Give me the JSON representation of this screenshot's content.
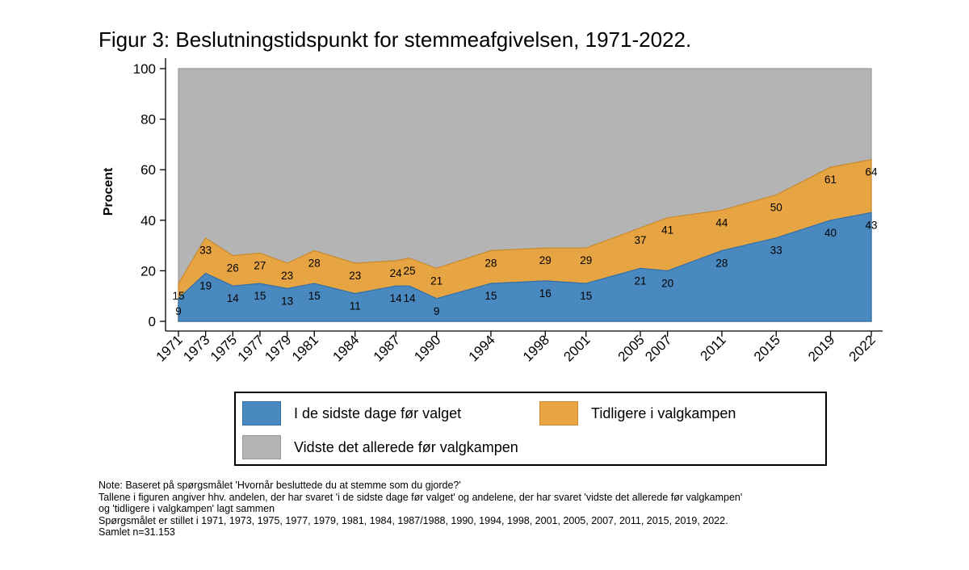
{
  "title": "Figur 3: Beslutningstidspunkt for stemmeafgivelsen, 1971-2022.",
  "chart_data": {
    "type": "area",
    "stacked": false,
    "x": [
      "1971",
      "1973",
      "1975",
      "1977",
      "1979",
      "1981",
      "1984",
      "1987",
      "1988",
      "1990",
      "1994",
      "1998",
      "2001",
      "2005",
      "2007",
      "2011",
      "2015",
      "2019",
      "2022"
    ],
    "x_tick_labels": [
      "1971",
      "1973",
      "1975",
      "1977",
      "1979",
      "1981",
      "1984",
      "1987",
      "1990",
      "1994",
      "1998",
      "2001",
      "2005",
      "2007",
      "2011",
      "2015",
      "2019",
      "2022"
    ],
    "y_ticks": [
      "0",
      "20",
      "40",
      "60",
      "80",
      "100"
    ],
    "ylabel": "Procent",
    "ylim": [
      0,
      100
    ],
    "series": [
      {
        "name": "Vidste det allerede før valgkampen",
        "color": "#b4b4b4",
        "values": [
          100,
          100,
          100,
          100,
          100,
          100,
          100,
          100,
          100,
          100,
          100,
          100,
          100,
          100,
          100,
          100,
          100,
          100,
          100
        ]
      },
      {
        "name": "Tidligere i valgkampen",
        "color": "#e6a443",
        "values": [
          15,
          33,
          26,
          27,
          23,
          28,
          23,
          24,
          25,
          21,
          28,
          29,
          29,
          37,
          41,
          44,
          50,
          61,
          64
        ],
        "labels": [
          "15",
          "33",
          "26",
          "27",
          "23",
          "28",
          "23",
          "24",
          "25",
          "21",
          "28",
          "29",
          "29",
          "37",
          "41",
          "44",
          "50",
          "61",
          "64"
        ]
      },
      {
        "name": "I de sidste dage før valget",
        "color": "#4a88c0",
        "values": [
          9,
          19,
          14,
          15,
          13,
          15,
          11,
          14,
          14,
          9,
          15,
          16,
          15,
          21,
          20,
          28,
          33,
          40,
          43
        ],
        "labels": [
          "9",
          "19",
          "14",
          "15",
          "13",
          "15",
          "11",
          "14",
          "14",
          "9",
          "15",
          "16",
          "15",
          "21",
          "20",
          "28",
          "33",
          "40",
          "43"
        ]
      }
    ]
  },
  "legend": {
    "item1": "I de sidste dage før valget",
    "item2": "Tidligere i valgkampen",
    "item3": "Vidste det allerede før valgkampen"
  },
  "notes": {
    "line1": "Note: Baseret på spørgsmålet 'Hvornår besluttede du at stemme som du gjorde?'",
    "line2": "Tallene i figuren angiver hhv. andelen, der har svaret 'i de sidste dage før valget' og andelene, der har svaret 'vidste det allerede før valgkampen'",
    "line3": "og 'tidligere i valgkampen' lagt sammen",
    "line4": "Spørgsmålet er stillet i 1971, 1973, 1975, 1977, 1979, 1981, 1984, 1987/1988, 1990, 1994, 1998, 2001, 2005, 2007, 2011, 2015, 2019, 2022.",
    "line5": "Samlet n=31.153"
  },
  "colors": {
    "blue": "#4a88c0",
    "blue_edge": "#2f6fa8",
    "orange": "#e6a443",
    "orange_edge": "#c88a2e",
    "gray": "#b4b4b4",
    "gray_edge": "#999999"
  }
}
